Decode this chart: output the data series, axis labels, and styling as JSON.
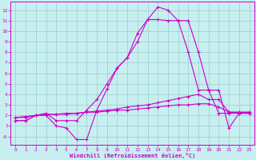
{
  "xlabel": "Windchill (Refroidissement éolien,°C)",
  "bg_color": "#c8eff0",
  "line_color": "#cc00cc",
  "grid_color": "#99cccc",
  "xticks": [
    0,
    1,
    2,
    3,
    4,
    5,
    6,
    7,
    8,
    9,
    10,
    11,
    12,
    13,
    14,
    15,
    16,
    17,
    18,
    19,
    20,
    21,
    22,
    23
  ],
  "yticks": [
    0,
    1,
    2,
    3,
    4,
    5,
    6,
    7,
    8,
    9,
    10,
    11,
    12
  ],
  "ytick_labels": [
    "-0",
    "1",
    "2",
    "3",
    "4",
    "5",
    "6",
    "7",
    "8",
    "9",
    "10",
    "11",
    "12"
  ],
  "xlim": [
    -0.5,
    23.5
  ],
  "ylim": [
    -0.8,
    12.8
  ],
  "line1_x": [
    0,
    1,
    2,
    3,
    4,
    5,
    6,
    7,
    8,
    9,
    10,
    11,
    12,
    13,
    14,
    15,
    16,
    17,
    18,
    19,
    20,
    21,
    22,
    23
  ],
  "line1_y": [
    1.5,
    1.5,
    2.0,
    2.0,
    1.0,
    0.8,
    -0.3,
    -0.3,
    2.5,
    4.5,
    6.5,
    7.5,
    9.8,
    11.1,
    12.3,
    12.0,
    11.0,
    11.0,
    8.0,
    4.4,
    4.4,
    0.8,
    2.2,
    2.2
  ],
  "line2_x": [
    0,
    1,
    2,
    3,
    4,
    5,
    6,
    7,
    8,
    9,
    10,
    11,
    12,
    13,
    14,
    15,
    16,
    17,
    18,
    19,
    20,
    21,
    22,
    23
  ],
  "line2_y": [
    1.5,
    1.5,
    2.0,
    2.2,
    1.5,
    1.5,
    1.5,
    2.5,
    3.5,
    5.0,
    6.5,
    7.5,
    9.0,
    11.1,
    11.1,
    11.0,
    11.0,
    8.0,
    4.4,
    4.4,
    2.2,
    2.2,
    2.2,
    2.2
  ],
  "line3_x": [
    0,
    1,
    2,
    3,
    4,
    5,
    6,
    7,
    8,
    9,
    10,
    11,
    12,
    13,
    14,
    15,
    16,
    17,
    18,
    19,
    20,
    21,
    22,
    23
  ],
  "line3_y": [
    1.8,
    1.8,
    2.0,
    2.1,
    2.1,
    2.1,
    2.2,
    2.3,
    2.4,
    2.5,
    2.6,
    2.8,
    2.9,
    3.0,
    3.2,
    3.4,
    3.6,
    3.8,
    4.0,
    3.5,
    3.5,
    2.3,
    2.3,
    2.3
  ],
  "line4_x": [
    0,
    1,
    2,
    3,
    4,
    5,
    6,
    7,
    8,
    9,
    10,
    11,
    12,
    13,
    14,
    15,
    16,
    17,
    18,
    19,
    20,
    21,
    22,
    23
  ],
  "line4_y": [
    1.8,
    1.9,
    2.0,
    2.1,
    2.1,
    2.2,
    2.2,
    2.3,
    2.3,
    2.4,
    2.5,
    2.5,
    2.6,
    2.7,
    2.8,
    2.9,
    3.0,
    3.0,
    3.1,
    3.1,
    2.8,
    2.3,
    2.3,
    2.3
  ]
}
